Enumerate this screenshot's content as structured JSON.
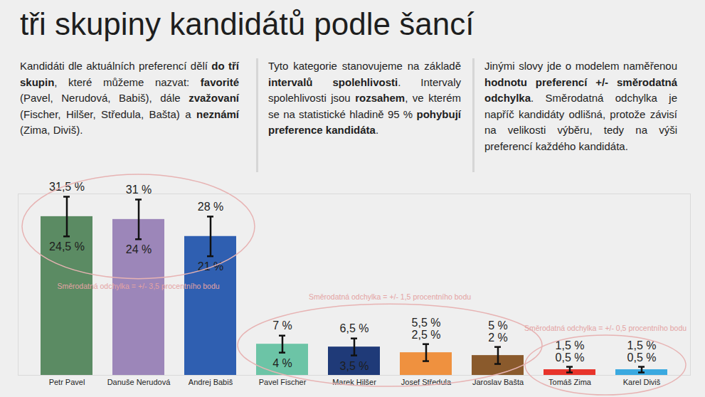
{
  "chart_data": {
    "type": "bar",
    "title": "tři skupiny kandidátů podle šancí",
    "paragraphs": [
      [
        {
          "text": "Kandidáti dle aktuálních preferencí dělí ",
          "bold": false
        },
        {
          "text": "do tří skupin",
          "bold": true
        },
        {
          "text": ", které můžeme nazvat: ",
          "bold": false
        },
        {
          "text": "favorité",
          "bold": true
        },
        {
          "text": " (Pavel, Nerudová, Babiš), dále ",
          "bold": false
        },
        {
          "text": "zvažovaní",
          "bold": true
        },
        {
          "text": " (Fischer, Hilšer, Středula, Bašta) a ",
          "bold": false
        },
        {
          "text": "neznámí",
          "bold": true
        },
        {
          "text": " (Zima, Diviš).",
          "bold": false
        }
      ],
      [
        {
          "text": "Tyto kategorie stanovujeme na základě ",
          "bold": false
        },
        {
          "text": "intervalů spolehlivosti",
          "bold": true
        },
        {
          "text": ". Intervaly spolehlivosti jsou ",
          "bold": false
        },
        {
          "text": "rozsahem",
          "bold": true
        },
        {
          "text": ", ve kterém se na statistické hladině 95 % ",
          "bold": false
        },
        {
          "text": "pohybují preference kandidáta",
          "bold": true
        },
        {
          "text": ".",
          "bold": false
        }
      ],
      [
        {
          "text": "Jinými slovy jde o modelem naměřenou ",
          "bold": false
        },
        {
          "text": "hodnotu preferencí +/- směrodatná odchylka",
          "bold": true
        },
        {
          "text": ". Směrodatná odchylka je napříč kandidáty odlišná, protože závisí na velikosti výběru, tedy na výši preferencí každého kandidáta.",
          "bold": false
        }
      ]
    ],
    "categories": [
      "Petr Pavel",
      "Danuše Nerudová",
      "Andrej Babiš",
      "Pavel Fischer",
      "Marek Hilšer",
      "Josef Středula",
      "Jaroslav Bašta",
      "Tomáš Zima",
      "Karel Diviš"
    ],
    "values": [
      28,
      27.5,
      24.5,
      5.5,
      5,
      4,
      3.5,
      1,
      1
    ],
    "colors": [
      "#5b8b63",
      "#9c86b9",
      "#2f5fb1",
      "#6cc4a6",
      "#1f3a78",
      "#ef913f",
      "#8a5a2c",
      "#e8342b",
      "#3aa9e0"
    ],
    "error_low": [
      24.5,
      24,
      21,
      4,
      3.5,
      2.5,
      2,
      0.5,
      0.5
    ],
    "error_high": [
      31.5,
      31,
      28,
      7,
      6.5,
      5.5,
      5,
      1.5,
      1.5
    ],
    "error_low_labels": [
      "24,5 %",
      "24 %",
      "21 %",
      "4 %",
      "3,5 %",
      "2,5 %",
      "2 %",
      "0,5 %",
      "0,5 %"
    ],
    "error_high_labels": [
      "31,5 %",
      "31 %",
      "28 %",
      "7 %",
      "6,5 %",
      "5,5 %",
      "5 %",
      "1,5 %",
      "1,5 %"
    ],
    "groups": [
      {
        "members": [
          "Petr Pavel",
          "Danuše Nerudová",
          "Andrej Babiš"
        ],
        "note": "Směrodatná odchylka = +/- 3,5 procentního bodu"
      },
      {
        "members": [
          "Pavel Fischer",
          "Marek Hilšer",
          "Josef Středula",
          "Jaroslav Bašta"
        ],
        "note": "Směrodatná odchylka = +/- 1,5 procentního bodu"
      },
      {
        "members": [
          "Tomáš Zima",
          "Karel Diviš"
        ],
        "note": "Směrodatná odchylka = +/- 0,5 procentního bodu"
      }
    ],
    "ylim": [
      0,
      32
    ],
    "tick_labels": "x"
  }
}
